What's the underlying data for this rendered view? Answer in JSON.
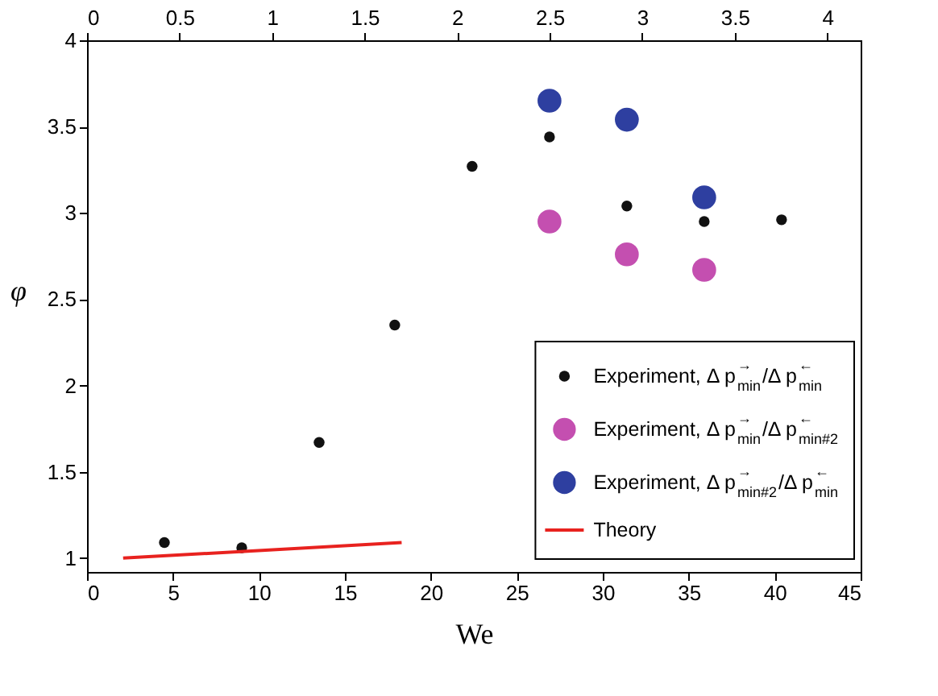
{
  "chart_data": {
    "type": "scatter",
    "xlabel": "We",
    "ylabel": "φ",
    "xlim": [
      0,
      45
    ],
    "xticks": [
      0,
      5,
      10,
      15,
      20,
      25,
      30,
      35,
      40,
      45
    ],
    "x2lim": [
      0,
      4.18
    ],
    "x2ticks": [
      0,
      0.5,
      1,
      1.5,
      2,
      2.5,
      3,
      3.5,
      4
    ],
    "ylim": [
      0.92,
      4
    ],
    "yticks": [
      1,
      1.5,
      2,
      2.5,
      3,
      3.5,
      4
    ],
    "grid": false,
    "legend": "bottom right",
    "series": [
      {
        "name": "Experiment, Δ p$^{→}$$_{min}$/Δ p$^{←}$$_{min}$",
        "marker": "circle",
        "color": "#111111",
        "x": [
          4.5,
          9.0,
          13.5,
          17.9,
          22.4,
          26.9,
          31.4,
          35.9,
          40.4
        ],
        "values": [
          1.09,
          1.06,
          1.67,
          2.35,
          3.27,
          3.44,
          3.04,
          2.95,
          2.96
        ]
      },
      {
        "name": "Experiment, Δ p$^{→}$$_{min}$/Δ p$^{←}$$_{min#2}$",
        "marker": "circle",
        "color": "#c44fb0",
        "x": [
          26.9,
          31.4,
          35.9
        ],
        "values": [
          2.95,
          2.76,
          2.67
        ]
      },
      {
        "name": "Experiment, Δ p$^{→}$$_{min#2}$/Δ p$^{←}$$_{min}$",
        "marker": "circle",
        "color": "#2e3fa0",
        "x": [
          26.9,
          31.4,
          35.9
        ],
        "values": [
          3.65,
          3.54,
          3.09
        ]
      },
      {
        "name": "Theory",
        "type": "line",
        "color": "#e8221f",
        "x": [
          2.1,
          18.3
        ],
        "values": [
          1.0,
          1.09
        ]
      }
    ]
  }
}
